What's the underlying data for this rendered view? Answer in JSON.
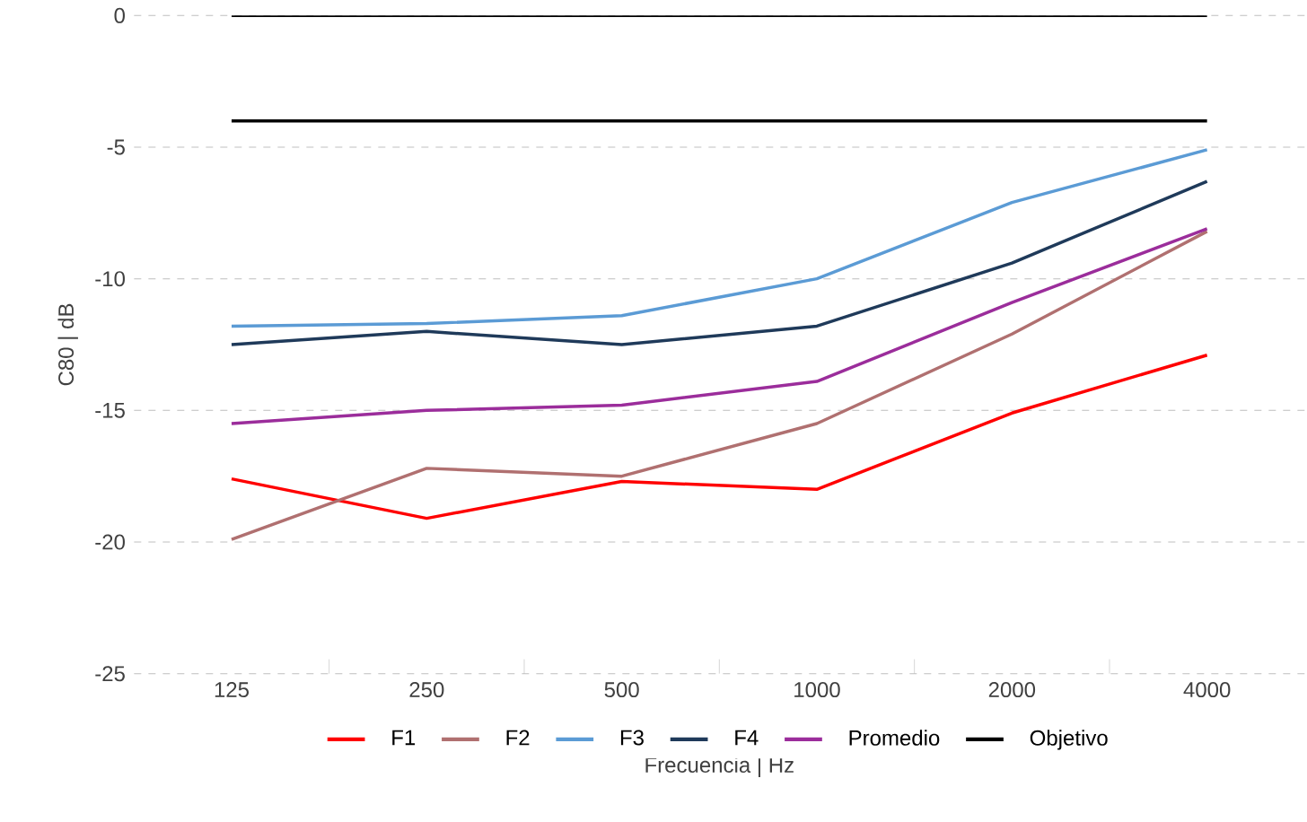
{
  "chart_data": {
    "type": "line",
    "xlabel": "Frecuencia  | Hz",
    "ylabel": "C80  | dB",
    "categories": [
      "125",
      "250",
      "500",
      "1000",
      "2000",
      "4000"
    ],
    "ylim": [
      -25,
      0
    ],
    "yticks": [
      -25,
      -20,
      -15,
      -10,
      -5,
      0
    ],
    "grid": "y",
    "legend": "bottom",
    "series": [
      {
        "name": "F1",
        "color": "#ff0000",
        "values": [
          -17.6,
          -19.1,
          -17.7,
          -18.0,
          -15.1,
          -12.9
        ]
      },
      {
        "name": "F2",
        "color": "#b07070",
        "values": [
          -19.9,
          -17.2,
          -17.5,
          -15.5,
          -12.1,
          -8.2
        ]
      },
      {
        "name": "F3",
        "color": "#5b9bd5",
        "values": [
          -11.8,
          -11.7,
          -11.4,
          -10.0,
          -7.1,
          -5.1
        ]
      },
      {
        "name": "F4",
        "color": "#1f3a5a",
        "values": [
          -12.5,
          -12.0,
          -12.5,
          -11.8,
          -9.4,
          -6.3
        ]
      },
      {
        "name": "Promedio",
        "color": "#9b2d9b",
        "values": [
          -15.5,
          -15.0,
          -14.8,
          -13.9,
          -10.9,
          -8.1
        ]
      },
      {
        "name": "Objetivo",
        "color": "#000000",
        "values": [
          -4,
          -4,
          -4,
          -4,
          -4,
          -4
        ]
      },
      {
        "color": "#000000",
        "values": [
          0,
          0,
          0,
          0,
          0,
          0
        ]
      }
    ]
  }
}
